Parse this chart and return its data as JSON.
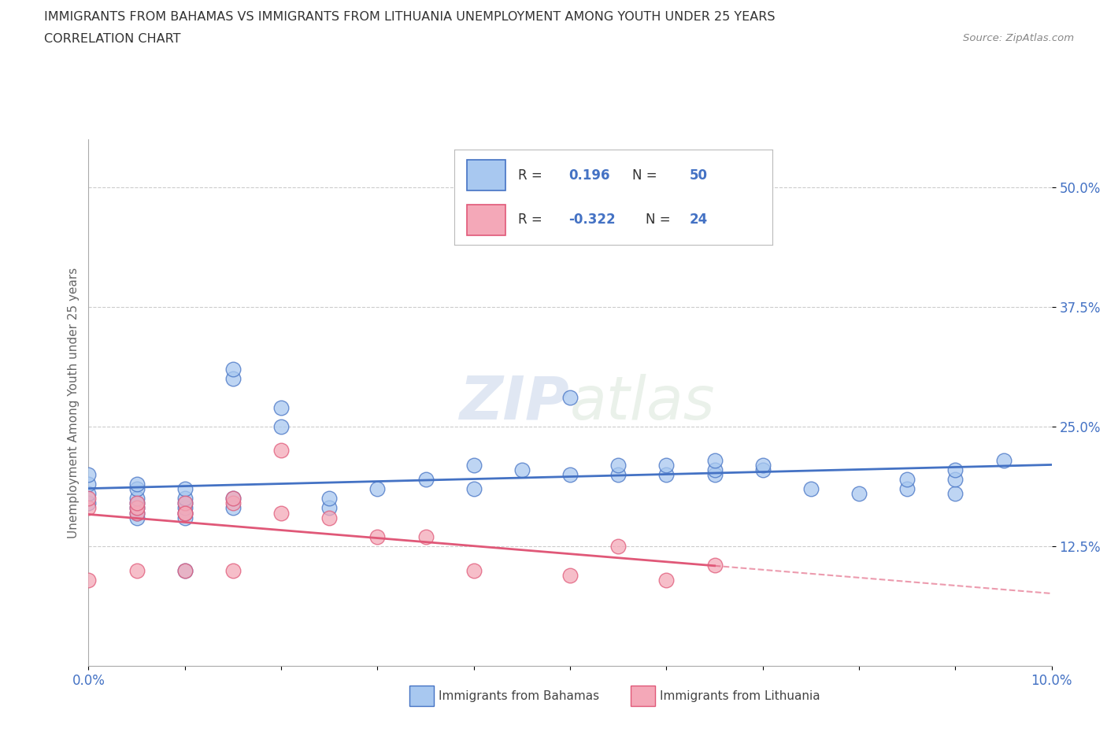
{
  "title_line1": "IMMIGRANTS FROM BAHAMAS VS IMMIGRANTS FROM LITHUANIA UNEMPLOYMENT AMONG YOUTH UNDER 25 YEARS",
  "title_line2": "CORRELATION CHART",
  "source_text": "Source: ZipAtlas.com",
  "ylabel": "Unemployment Among Youth under 25 years",
  "xlim": [
    0.0,
    0.1
  ],
  "ylim": [
    0.0,
    0.55
  ],
  "ytick_vals": [
    0.125,
    0.25,
    0.375,
    0.5
  ],
  "ytick_labels": [
    "12.5%",
    "25.0%",
    "37.5%",
    "50.0%"
  ],
  "r_bahamas": 0.196,
  "n_bahamas": 50,
  "r_lithuania": -0.322,
  "n_lithuania": 24,
  "color_bahamas": "#a8c8f0",
  "color_lithuania": "#f4a8b8",
  "line_color_bahamas": "#4472c4",
  "line_color_lithuania": "#e05878",
  "background_color": "#ffffff",
  "grid_color": "#cccccc",
  "watermark_zip": "ZIP",
  "watermark_atlas": "atlas",
  "bahamas_x": [
    0.0,
    0.0,
    0.0,
    0.0,
    0.005,
    0.005,
    0.005,
    0.005,
    0.005,
    0.005,
    0.005,
    0.01,
    0.01,
    0.01,
    0.01,
    0.01,
    0.01,
    0.01,
    0.015,
    0.015,
    0.015,
    0.015,
    0.02,
    0.02,
    0.025,
    0.025,
    0.03,
    0.035,
    0.04,
    0.04,
    0.045,
    0.05,
    0.05,
    0.055,
    0.055,
    0.06,
    0.06,
    0.065,
    0.065,
    0.065,
    0.07,
    0.07,
    0.075,
    0.08,
    0.085,
    0.085,
    0.09,
    0.09,
    0.09,
    0.095
  ],
  "bahamas_y": [
    0.17,
    0.18,
    0.19,
    0.2,
    0.155,
    0.16,
    0.165,
    0.17,
    0.175,
    0.185,
    0.19,
    0.1,
    0.155,
    0.16,
    0.165,
    0.17,
    0.175,
    0.185,
    0.3,
    0.31,
    0.165,
    0.175,
    0.25,
    0.27,
    0.165,
    0.175,
    0.185,
    0.195,
    0.185,
    0.21,
    0.205,
    0.28,
    0.2,
    0.2,
    0.21,
    0.2,
    0.21,
    0.2,
    0.205,
    0.215,
    0.205,
    0.21,
    0.185,
    0.18,
    0.185,
    0.195,
    0.18,
    0.195,
    0.205,
    0.215
  ],
  "lithuania_x": [
    0.0,
    0.0,
    0.0,
    0.005,
    0.005,
    0.005,
    0.005,
    0.01,
    0.01,
    0.01,
    0.01,
    0.015,
    0.015,
    0.015,
    0.02,
    0.02,
    0.025,
    0.03,
    0.035,
    0.04,
    0.05,
    0.055,
    0.06,
    0.065
  ],
  "lithuania_y": [
    0.165,
    0.175,
    0.09,
    0.16,
    0.165,
    0.17,
    0.1,
    0.16,
    0.17,
    0.16,
    0.1,
    0.17,
    0.175,
    0.1,
    0.225,
    0.16,
    0.155,
    0.135,
    0.135,
    0.1,
    0.095,
    0.125,
    0.09,
    0.105
  ]
}
